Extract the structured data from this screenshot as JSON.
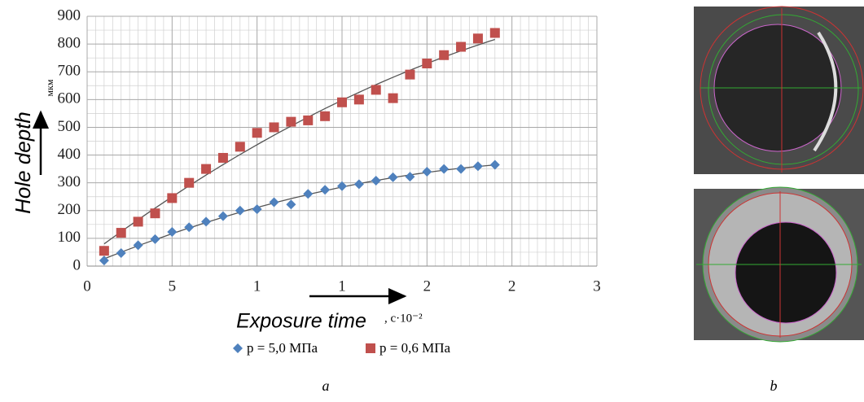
{
  "chart_data": {
    "type": "scatter",
    "y_label": "Hole depth",
    "y_unit": "мкм",
    "x_label": "Exposure time",
    "x_unit": ", с·10⁻²",
    "x": [
      0.1,
      0.2,
      0.3,
      0.4,
      0.5,
      0.6,
      0.7,
      0.8,
      0.9,
      1.0,
      1.1,
      1.2,
      1.3,
      1.4,
      1.5,
      1.6,
      1.7,
      1.8,
      1.9,
      2.0,
      2.1,
      2.2,
      2.3,
      2.4
    ],
    "series": [
      {
        "name": "p = 5,0 МПа",
        "color": "#4f81bd",
        "marker": "diamond",
        "values": [
          20,
          47,
          75,
          97,
          123,
          140,
          160,
          180,
          200,
          205,
          230,
          222,
          260,
          275,
          288,
          295,
          308,
          320,
          322,
          340,
          350,
          350,
          360,
          365
        ]
      },
      {
        "name": "p = 0,6 МПа",
        "color": "#c0504d",
        "marker": "square",
        "values": [
          55,
          120,
          160,
          190,
          245,
          300,
          350,
          390,
          430,
          480,
          500,
          520,
          525,
          540,
          590,
          600,
          635,
          605,
          690,
          730,
          760,
          790,
          820,
          840
        ]
      }
    ],
    "xlim": [
      0,
      3
    ],
    "ylim": [
      0,
      900
    ],
    "xticks": [
      0,
      {
        "value": 0.5,
        "label": "5"
      },
      1,
      {
        "value": 1.5,
        "label": "1"
      },
      2,
      {
        "value": 2.5,
        "label": "2"
      },
      3
    ],
    "yticks": [
      0,
      100,
      200,
      300,
      400,
      500,
      600,
      700,
      800,
      900
    ],
    "grid": true,
    "minor_grid": true,
    "trendline": true,
    "trend_color": "#555555"
  },
  "panels": {
    "left": "a",
    "right": "b"
  }
}
